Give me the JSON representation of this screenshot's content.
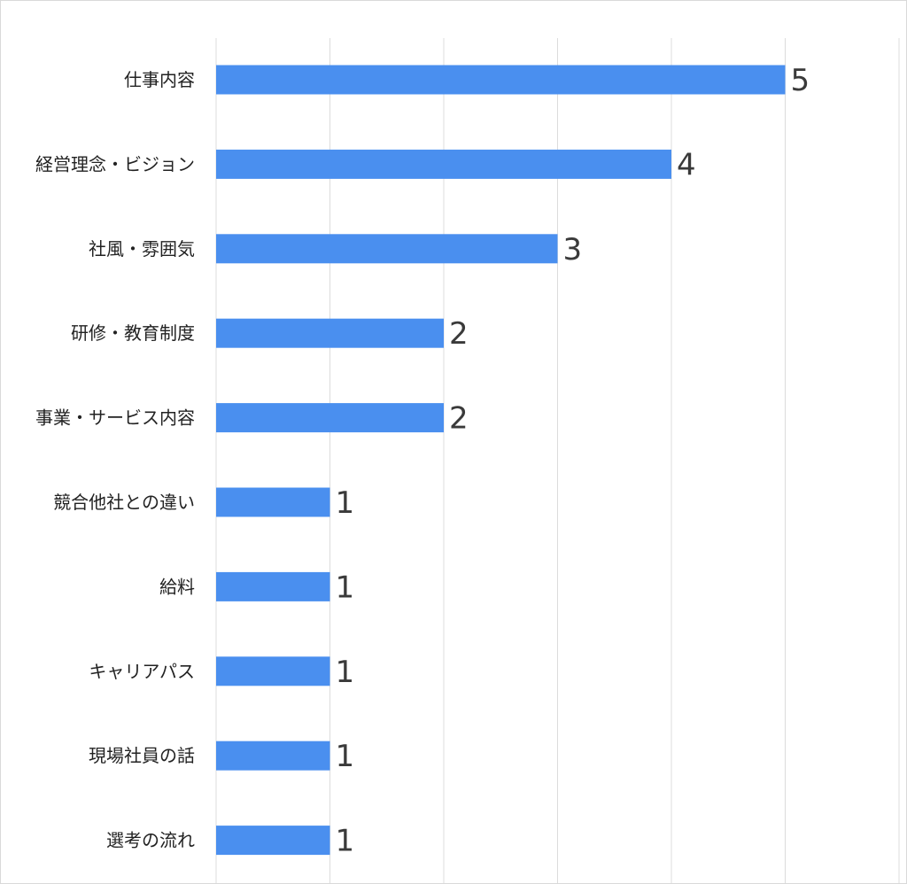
{
  "chart_data": {
    "type": "bar",
    "orientation": "horizontal",
    "categories": [
      "仕事内容",
      "経営理念・ビジョン",
      "社風・雰囲気",
      "研修・教育制度",
      "事業・サービス内容",
      "競合他社との違い",
      "給料",
      "キャリアパス",
      "現場社員の話",
      "選考の流れ"
    ],
    "values": [
      5,
      4,
      3,
      2,
      2,
      1,
      1,
      1,
      1,
      1
    ],
    "title": "",
    "xlabel": "",
    "ylabel": "",
    "xlim": [
      0,
      6
    ],
    "grid": true,
    "data_labels": true,
    "bar_color": "#4a8fef",
    "grid_color": "#dcdcdc"
  }
}
